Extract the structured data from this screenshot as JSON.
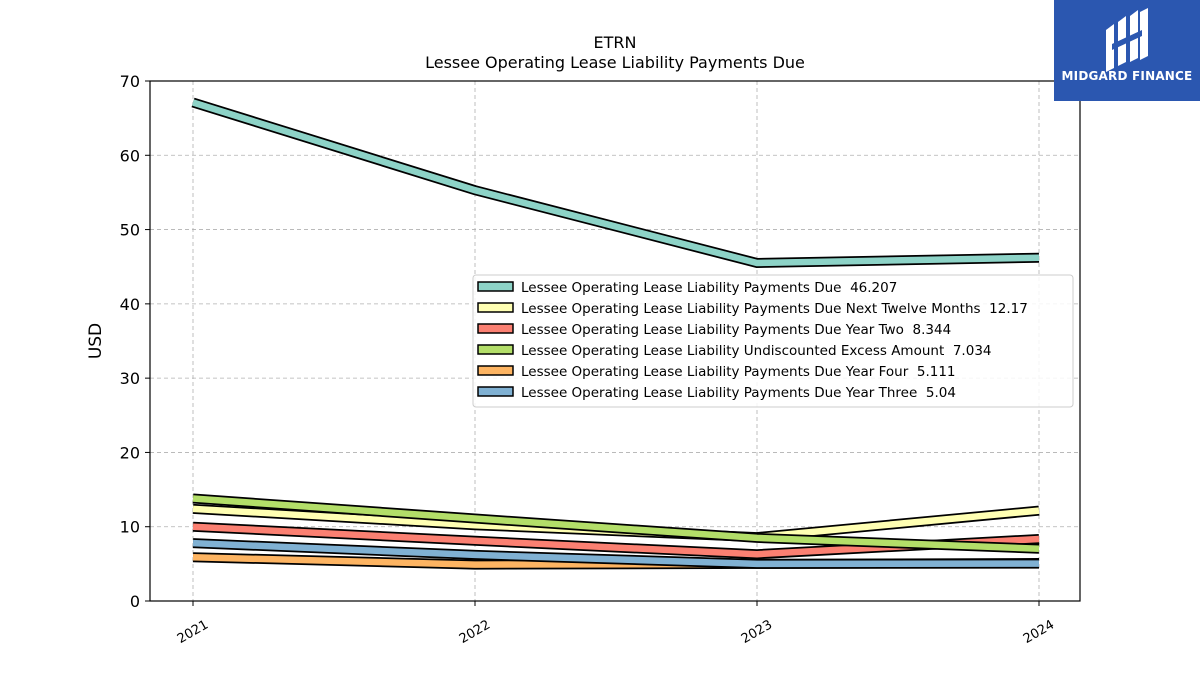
{
  "chart_data": {
    "type": "line",
    "title": "ETRN",
    "subtitle": "Lessee Operating Lease Liability Payments Due",
    "xlabel": "",
    "ylabel": "USD",
    "x": [
      "2021",
      "2022",
      "2023",
      "2024"
    ],
    "ylim": [
      0,
      70
    ],
    "yticks": [
      0,
      10,
      20,
      30,
      40,
      50,
      60,
      70
    ],
    "grid": true,
    "legend_position": "center-right",
    "series": [
      {
        "name": "Lessee Operating Lease Liability Payments Due",
        "legend_value": "46.207",
        "values": [
          67.1,
          55.3,
          45.5,
          46.207
        ],
        "color": "#8dd3c7"
      },
      {
        "name": "Lessee Operating Lease Liability Payments Due Next Twelve Months",
        "legend_value": "12.17",
        "values": [
          12.4,
          10.2,
          8.6,
          12.17
        ],
        "color": "#ffffb3"
      },
      {
        "name": "Lessee Operating Lease Liability Payments Due Year Two",
        "legend_value": "8.344",
        "values": [
          10.0,
          8.1,
          6.3,
          8.344
        ],
        "color": "#fb8072"
      },
      {
        "name": "Lessee Operating Lease Liability Undiscounted Excess Amount",
        "legend_value": "7.034",
        "values": [
          13.8,
          11.1,
          8.5,
          7.034
        ],
        "color": "#b3de69"
      },
      {
        "name": "Lessee Operating Lease Liability Payments Due Year Four",
        "legend_value": "5.111",
        "values": [
          5.9,
          4.9,
          5.0,
          5.111
        ],
        "color": "#fdb462"
      },
      {
        "name": "Lessee Operating Lease Liability Payments Due Year Three",
        "legend_value": "5.04",
        "values": [
          7.8,
          6.2,
          5.0,
          5.04
        ],
        "color": "#80b1d3"
      }
    ]
  },
  "logo": {
    "text": "MIDGARD FINANCE",
    "color": "#2b57b0"
  }
}
